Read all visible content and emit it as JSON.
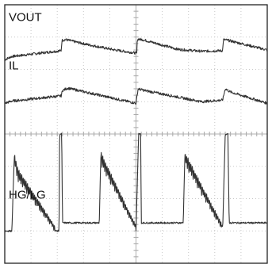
{
  "chart_data": {
    "type": "line",
    "title": "",
    "xlabel": "",
    "ylabel": "",
    "grid": true,
    "divisions": {
      "x": 10,
      "y": 8
    },
    "ylim": [
      0,
      8
    ],
    "xlim": [
      0,
      10
    ],
    "series": [
      {
        "name": "VOUT",
        "baseline": 6.5,
        "points": [
          [
            0,
            6.3
          ],
          [
            0.27,
            6.4
          ],
          [
            2.15,
            6.58
          ],
          [
            2.18,
            6.9
          ],
          [
            2.32,
            6.92
          ],
          [
            3.2,
            6.76
          ],
          [
            4.2,
            6.6
          ],
          [
            5.03,
            6.5
          ],
          [
            5.05,
            6.94
          ],
          [
            5.25,
            6.92
          ],
          [
            6.6,
            6.62
          ],
          [
            7.5,
            6.56
          ],
          [
            8.3,
            6.58
          ],
          [
            8.33,
            6.92
          ],
          [
            8.5,
            6.9
          ],
          [
            10,
            6.6
          ]
        ]
      },
      {
        "name": "IL",
        "baseline": 5.0,
        "points": [
          [
            0,
            4.95
          ],
          [
            0.27,
            5.02
          ],
          [
            2.15,
            5.18
          ],
          [
            2.2,
            5.35
          ],
          [
            2.4,
            5.42
          ],
          [
            5.0,
            4.95
          ],
          [
            5.08,
            5.4
          ],
          [
            5.3,
            5.35
          ],
          [
            7.5,
            5.0
          ],
          [
            8.3,
            5.05
          ],
          [
            8.4,
            5.4
          ],
          [
            8.6,
            5.3
          ],
          [
            10,
            4.95
          ]
        ]
      },
      {
        "name": "HG/LG",
        "baseline": 1.0,
        "points": [
          [
            0,
            1.0
          ],
          [
            0.27,
            1.0
          ],
          [
            0.35,
            3.0
          ],
          [
            0.5,
            2.5
          ],
          [
            1.9,
            1.0
          ],
          [
            2.07,
            1.0
          ],
          [
            2.09,
            4.0
          ],
          [
            2.17,
            4.0
          ],
          [
            2.2,
            1.25
          ],
          [
            3.6,
            1.25
          ],
          [
            3.65,
            3.0
          ],
          [
            5.0,
            1.0
          ],
          [
            5.1,
            4.0
          ],
          [
            5.18,
            4.0
          ],
          [
            5.2,
            1.25
          ],
          [
            6.8,
            1.25
          ],
          [
            6.85,
            3.0
          ],
          [
            8.3,
            1.0
          ],
          [
            8.4,
            4.0
          ],
          [
            8.5,
            4.0
          ],
          [
            8.55,
            1.25
          ],
          [
            10,
            1.25
          ]
        ]
      }
    ]
  }
}
